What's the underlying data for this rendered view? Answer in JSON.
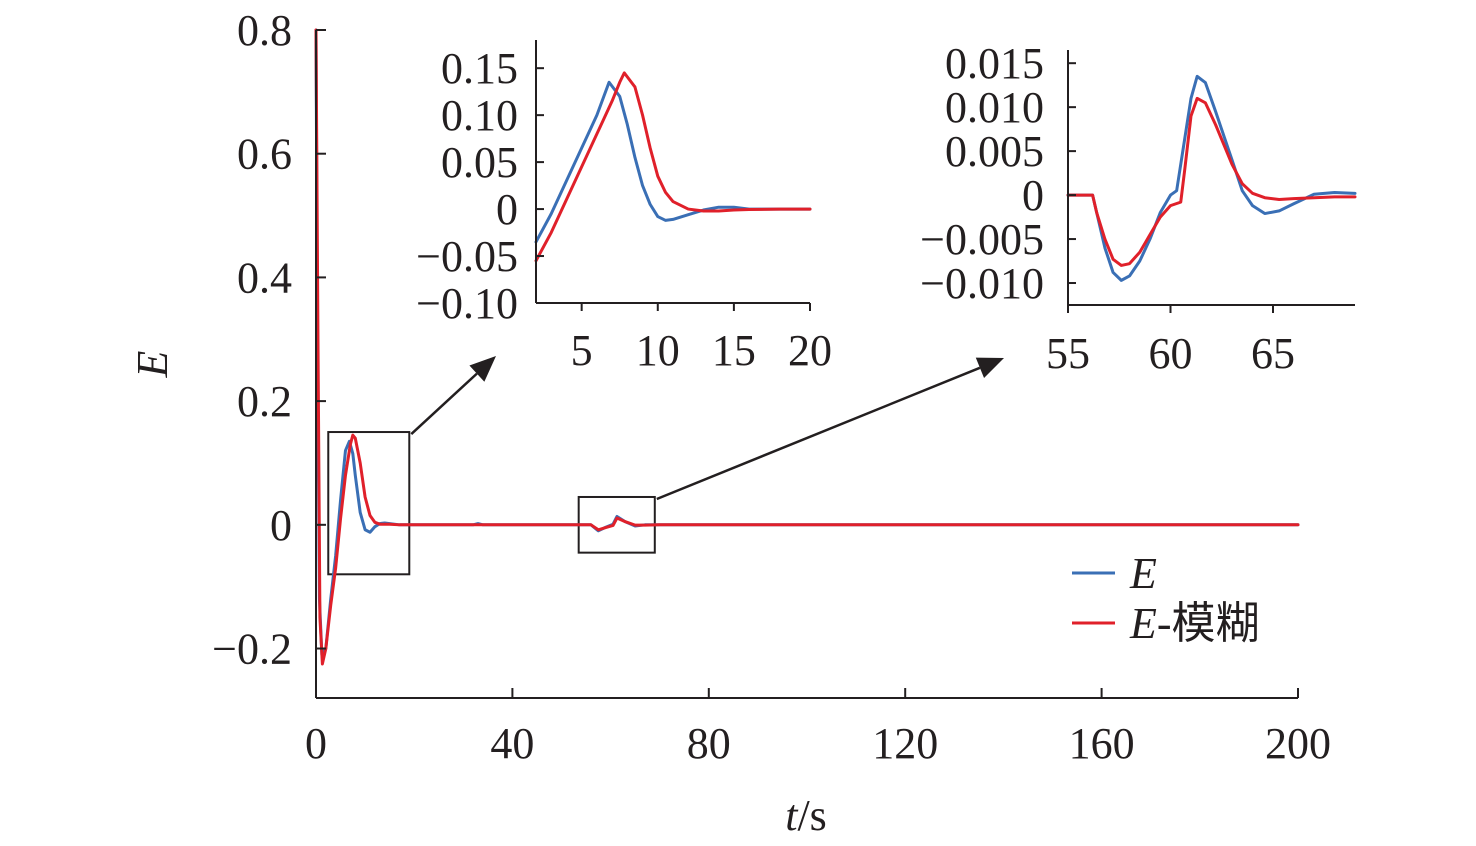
{
  "chart_data": [
    {
      "id": "main",
      "type": "line",
      "xlabel_var": "t",
      "xlabel_unit": "/s",
      "ylabel": "E",
      "xlim": [
        0,
        200
      ],
      "ylim": [
        -0.28,
        0.8
      ],
      "xticks": [
        0,
        40,
        80,
        120,
        160,
        200
      ],
      "xtick_labels": [
        "0",
        "40",
        "80",
        "120",
        "160",
        "200"
      ],
      "yticks": [
        -0.2,
        0,
        0.2,
        0.4,
        0.6,
        0.8
      ],
      "ytick_labels": [
        "−0.2",
        "0",
        "0.2",
        "0.4",
        "0.6",
        "0.8"
      ],
      "grid": false,
      "legend_position": "bottom-right",
      "series": [
        {
          "name": "E",
          "legend_italic": "E",
          "legend_suffix": "",
          "color": "#3a6fb5",
          "points": [
            [
              0,
              0.8
            ],
            [
              0.3,
              0.3
            ],
            [
              0.7,
              -0.12
            ],
            [
              1.2,
              -0.21
            ],
            [
              2,
              -0.2
            ],
            [
              3,
              -0.12
            ],
            [
              4,
              -0.05
            ],
            [
              5,
              0.04
            ],
            [
              6,
              0.12
            ],
            [
              6.8,
              0.135
            ],
            [
              7.5,
              0.115
            ],
            [
              8,
              0.08
            ],
            [
              9,
              0.02
            ],
            [
              10,
              -0.008
            ],
            [
              11,
              -0.012
            ],
            [
              12,
              -0.003
            ],
            [
              13,
              0.002
            ],
            [
              14,
              0.003
            ],
            [
              15,
              0.002
            ],
            [
              17,
              0
            ],
            [
              20,
              0
            ],
            [
              32,
              0
            ],
            [
              33,
              0.002
            ],
            [
              34,
              0
            ],
            [
              55,
              0
            ],
            [
              56,
              0
            ],
            [
              57.5,
              -0.0097
            ],
            [
              59,
              -0.004
            ],
            [
              60.5,
              0.001
            ],
            [
              61.3,
              0.0135
            ],
            [
              63,
              0.005
            ],
            [
              65,
              -0.002
            ],
            [
              67,
              0
            ],
            [
              70,
              0
            ],
            [
              100,
              0
            ],
            [
              200,
              0
            ]
          ]
        },
        {
          "name": "E-模糊",
          "legend_italic": "E",
          "legend_suffix": "-模糊",
          "color": "#e0202a",
          "points": [
            [
              0,
              0.8
            ],
            [
              0.4,
              0.3
            ],
            [
              0.8,
              -0.15
            ],
            [
              1.3,
              -0.225
            ],
            [
              2,
              -0.2
            ],
            [
              3,
              -0.13
            ],
            [
              4,
              -0.07
            ],
            [
              5,
              0.01
            ],
            [
              6,
              0.08
            ],
            [
              7,
              0.13
            ],
            [
              7.5,
              0.145
            ],
            [
              8,
              0.14
            ],
            [
              9,
              0.1
            ],
            [
              10,
              0.045
            ],
            [
              11,
              0.015
            ],
            [
              12,
              0.004
            ],
            [
              13,
              0.001
            ],
            [
              15,
              0.001
            ],
            [
              17,
              0
            ],
            [
              20,
              0
            ],
            [
              55,
              0
            ],
            [
              56,
              0
            ],
            [
              57.5,
              -0.008
            ],
            [
              59,
              -0.0045
            ],
            [
              60.5,
              -0.001
            ],
            [
              61.3,
              0.011
            ],
            [
              63,
              0.005
            ],
            [
              65,
              -0.0005
            ],
            [
              67,
              -0.0005
            ],
            [
              70,
              0
            ],
            [
              100,
              0
            ],
            [
              200,
              0
            ]
          ]
        }
      ]
    },
    {
      "id": "inset1",
      "type": "line",
      "xlim": [
        2,
        20
      ],
      "ylim": [
        -0.1,
        0.18
      ],
      "xticks": [
        5,
        10,
        15,
        20
      ],
      "xtick_labels": [
        "5",
        "10",
        "15",
        "20"
      ],
      "yticks": [
        -0.1,
        -0.05,
        0,
        0.05,
        0.1,
        0.15
      ],
      "ytick_labels": [
        "−0.10",
        "−0.05",
        "0",
        "0.05",
        "0.10",
        "0.15"
      ],
      "series": [
        {
          "name": "E",
          "color": "#3a6fb5",
          "points": [
            [
              2,
              -0.035
            ],
            [
              3,
              -0.005
            ],
            [
              4,
              0.03
            ],
            [
              5,
              0.065
            ],
            [
              6,
              0.1
            ],
            [
              6.8,
              0.135
            ],
            [
              7.5,
              0.12
            ],
            [
              8,
              0.09
            ],
            [
              8.5,
              0.055
            ],
            [
              9,
              0.025
            ],
            [
              9.5,
              0.005
            ],
            [
              10,
              -0.008
            ],
            [
              10.5,
              -0.012
            ],
            [
              11,
              -0.011
            ],
            [
              12,
              -0.006
            ],
            [
              13,
              -0.001
            ],
            [
              14,
              0.002
            ],
            [
              15,
              0.002
            ],
            [
              16,
              0
            ],
            [
              17,
              0
            ],
            [
              20,
              0
            ]
          ]
        },
        {
          "name": "E-模糊",
          "color": "#e0202a",
          "points": [
            [
              2,
              -0.055
            ],
            [
              3,
              -0.025
            ],
            [
              4,
              0.01
            ],
            [
              5,
              0.045
            ],
            [
              6,
              0.08
            ],
            [
              7,
              0.115
            ],
            [
              7.5,
              0.135
            ],
            [
              7.8,
              0.145
            ],
            [
              8.5,
              0.13
            ],
            [
              9,
              0.1
            ],
            [
              9.5,
              0.065
            ],
            [
              10,
              0.035
            ],
            [
              10.5,
              0.018
            ],
            [
              11,
              0.008
            ],
            [
              12,
              0
            ],
            [
              13,
              -0.002
            ],
            [
              14,
              -0.002
            ],
            [
              15,
              -0.001
            ],
            [
              16,
              -0.0005
            ],
            [
              18,
              0
            ],
            [
              20,
              0
            ]
          ]
        }
      ]
    },
    {
      "id": "inset2",
      "type": "line",
      "xlim": [
        55,
        69
      ],
      "ylim": [
        -0.0125,
        0.0165
      ],
      "xticks": [
        55,
        60,
        65
      ],
      "xtick_labels": [
        "55",
        "60",
        "65"
      ],
      "yticks": [
        -0.01,
        -0.005,
        0,
        0.005,
        0.01,
        0.015
      ],
      "ytick_labels": [
        "−0.010",
        "−0.005",
        "0",
        "0.005",
        "0.010",
        "0.015"
      ],
      "series": [
        {
          "name": "E",
          "color": "#3a6fb5",
          "points": [
            [
              55,
              0
            ],
            [
              56.2,
              0
            ],
            [
              56.4,
              -0.002
            ],
            [
              56.8,
              -0.006
            ],
            [
              57.2,
              -0.0088
            ],
            [
              57.6,
              -0.0097
            ],
            [
              58,
              -0.0092
            ],
            [
              58.5,
              -0.0075
            ],
            [
              59,
              -0.005
            ],
            [
              59.5,
              -0.002
            ],
            [
              60,
              0
            ],
            [
              60.3,
              0.0005
            ],
            [
              60.6,
              0.005
            ],
            [
              61,
              0.011
            ],
            [
              61.3,
              0.0135
            ],
            [
              61.7,
              0.0128
            ],
            [
              62.2,
              0.0095
            ],
            [
              63,
              0.004
            ],
            [
              63.5,
              0.0005
            ],
            [
              64,
              -0.0012
            ],
            [
              64.6,
              -0.0021
            ],
            [
              65.3,
              -0.0018
            ],
            [
              66,
              -0.001
            ],
            [
              67,
              0.0001
            ],
            [
              68,
              0.0003
            ],
            [
              69,
              0.0002
            ]
          ]
        },
        {
          "name": "E-模糊",
          "color": "#e0202a",
          "points": [
            [
              55,
              0
            ],
            [
              56.2,
              0
            ],
            [
              56.4,
              -0.002
            ],
            [
              56.8,
              -0.005
            ],
            [
              57.2,
              -0.0073
            ],
            [
              57.6,
              -0.008
            ],
            [
              58,
              -0.0078
            ],
            [
              58.5,
              -0.0065
            ],
            [
              59,
              -0.0045
            ],
            [
              59.5,
              -0.0025
            ],
            [
              60,
              -0.0012
            ],
            [
              60.5,
              -0.0008
            ],
            [
              60.7,
              0.003
            ],
            [
              61,
              0.009
            ],
            [
              61.3,
              0.011
            ],
            [
              61.7,
              0.0105
            ],
            [
              62.2,
              0.008
            ],
            [
              63,
              0.0035
            ],
            [
              63.5,
              0.0013
            ],
            [
              64,
              0.0002
            ],
            [
              64.6,
              -0.0003
            ],
            [
              65.3,
              -0.0005
            ],
            [
              66,
              -0.0004
            ],
            [
              67,
              -0.0003
            ],
            [
              68,
              -0.0002
            ],
            [
              69,
              -0.0002
            ]
          ]
        }
      ]
    }
  ]
}
